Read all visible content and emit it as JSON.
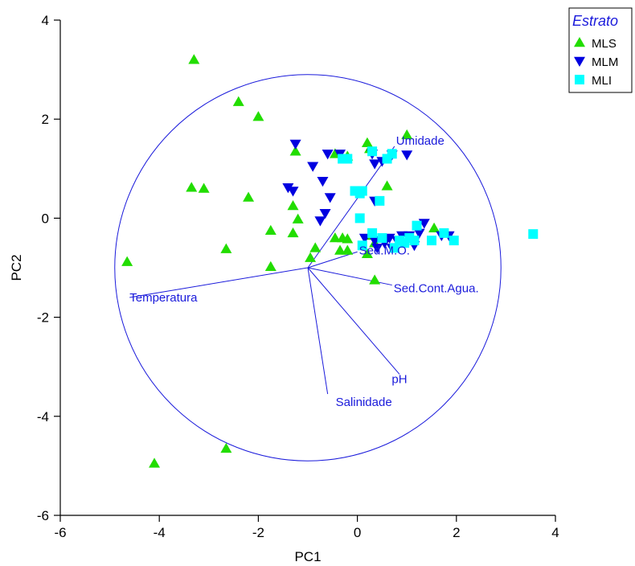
{
  "chart_data": {
    "type": "scatter",
    "xlabel": "PC1",
    "ylabel": "PC2",
    "xlim": [
      -6,
      4
    ],
    "ylim": [
      -6,
      4
    ],
    "xticks": [
      -6,
      -4,
      -2,
      0,
      2,
      4
    ],
    "yticks": [
      -6,
      -4,
      -2,
      0,
      2,
      4
    ],
    "grid": false,
    "legend": {
      "title": "Estrato",
      "placement": "top-right",
      "title_color": "#1a1adb",
      "entries": [
        "MLS",
        "MLM",
        "MLI"
      ]
    },
    "biplot": {
      "origin": [
        -1.0,
        -1.0
      ],
      "circle_radius": 3.9,
      "color": "#1a1adb",
      "vectors": [
        {
          "label": "Umidade",
          "end": [
            0.75,
            1.45
          ]
        },
        {
          "label": "Sed.M.O.",
          "end": [
            0.0,
            -0.68
          ]
        },
        {
          "label": "Sed.Cont.Agua.",
          "end": [
            0.7,
            -1.35
          ]
        },
        {
          "label": "Temperatura",
          "end": [
            -4.6,
            -1.6
          ]
        },
        {
          "label": "pH",
          "end": [
            0.85,
            -3.15
          ]
        },
        {
          "label": "Salinidade",
          "end": [
            -0.6,
            -3.55
          ]
        }
      ]
    },
    "series": [
      {
        "name": "MLS",
        "marker": "triangle-up",
        "color": "#22dd00",
        "points": [
          [
            -3.3,
            3.2
          ],
          [
            -2.4,
            2.35
          ],
          [
            -2.0,
            2.05
          ],
          [
            -3.35,
            0.62
          ],
          [
            -3.1,
            0.6
          ],
          [
            -2.2,
            0.42
          ],
          [
            -4.65,
            -0.88
          ],
          [
            -2.65,
            -0.62
          ],
          [
            -1.75,
            -0.25
          ],
          [
            -1.3,
            0.25
          ],
          [
            -1.2,
            -0.02
          ],
          [
            -1.3,
            -0.3
          ],
          [
            -1.75,
            -0.98
          ],
          [
            -1.25,
            1.35
          ],
          [
            -0.95,
            -0.8
          ],
          [
            -0.85,
            -0.6
          ],
          [
            -0.45,
            1.3
          ],
          [
            -0.2,
            1.25
          ],
          [
            -0.45,
            -0.4
          ],
          [
            -0.3,
            -0.4
          ],
          [
            -0.2,
            -0.42
          ],
          [
            -0.35,
            -0.65
          ],
          [
            -0.2,
            -0.65
          ],
          [
            0.2,
            1.52
          ],
          [
            0.25,
            1.4
          ],
          [
            0.6,
            0.65
          ],
          [
            0.3,
            -0.35
          ],
          [
            0.35,
            -0.5
          ],
          [
            0.2,
            -0.72
          ],
          [
            0.35,
            -1.25
          ],
          [
            1.0,
            1.68
          ],
          [
            1.55,
            -0.2
          ],
          [
            -4.1,
            -4.95
          ],
          [
            -2.65,
            -4.65
          ]
        ]
      },
      {
        "name": "MLM",
        "marker": "triangle-down",
        "color": "#0000e0",
        "points": [
          [
            -1.25,
            1.5
          ],
          [
            -1.4,
            0.62
          ],
          [
            -1.3,
            0.55
          ],
          [
            -0.9,
            1.05
          ],
          [
            -0.6,
            1.3
          ],
          [
            -0.35,
            1.3
          ],
          [
            -0.7,
            0.75
          ],
          [
            -0.55,
            0.42
          ],
          [
            -0.65,
            0.1
          ],
          [
            -0.75,
            -0.05
          ],
          [
            0.3,
            1.3
          ],
          [
            0.35,
            1.1
          ],
          [
            0.5,
            1.15
          ],
          [
            0.7,
            1.28
          ],
          [
            1.0,
            1.28
          ],
          [
            0.35,
            0.35
          ],
          [
            0.15,
            -0.4
          ],
          [
            0.35,
            -0.45
          ],
          [
            0.55,
            -0.5
          ],
          [
            0.65,
            -0.4
          ],
          [
            0.4,
            -0.6
          ],
          [
            0.7,
            -0.6
          ],
          [
            0.8,
            -0.45
          ],
          [
            0.9,
            -0.35
          ],
          [
            1.05,
            -0.35
          ],
          [
            1.25,
            -0.3
          ],
          [
            1.35,
            -0.1
          ],
          [
            1.15,
            -0.55
          ],
          [
            1.7,
            -0.35
          ],
          [
            1.85,
            -0.35
          ]
        ]
      },
      {
        "name": "MLI",
        "marker": "square",
        "color": "#00ffff",
        "points": [
          [
            -0.3,
            1.2
          ],
          [
            -0.2,
            1.2
          ],
          [
            0.3,
            1.35
          ],
          [
            0.6,
            1.2
          ],
          [
            0.7,
            1.3
          ],
          [
            -0.05,
            0.55
          ],
          [
            0.05,
            0.5
          ],
          [
            0.1,
            0.55
          ],
          [
            0.45,
            0.35
          ],
          [
            0.05,
            0.0
          ],
          [
            0.1,
            -0.55
          ],
          [
            0.3,
            -0.3
          ],
          [
            0.5,
            -0.4
          ],
          [
            0.75,
            -0.6
          ],
          [
            0.85,
            -0.45
          ],
          [
            0.95,
            -0.5
          ],
          [
            1.05,
            -0.4
          ],
          [
            1.15,
            -0.45
          ],
          [
            1.2,
            -0.15
          ],
          [
            1.5,
            -0.45
          ],
          [
            1.75,
            -0.3
          ],
          [
            1.95,
            -0.45
          ],
          [
            3.55,
            -0.32
          ]
        ]
      }
    ]
  }
}
